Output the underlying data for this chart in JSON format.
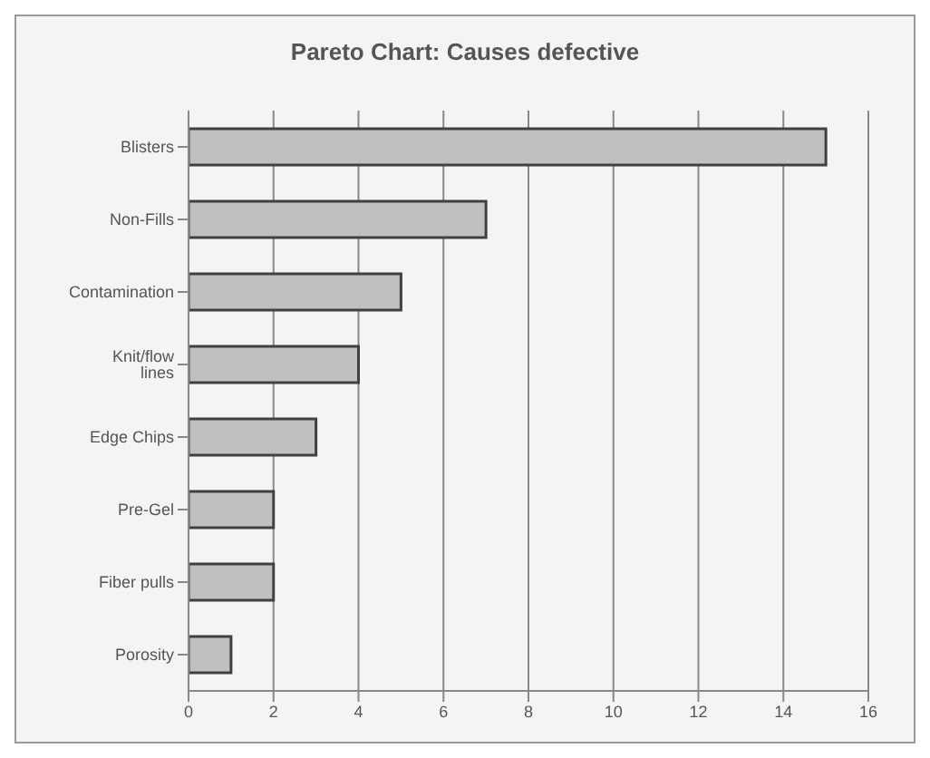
{
  "chart_data": {
    "type": "bar",
    "orientation": "horizontal",
    "title": "Pareto Chart: Causes defective",
    "categories": [
      "Blisters",
      "Non-Fills",
      "Contamination",
      "Knit/flow lines",
      "Edge Chips",
      "Pre-Gel",
      "Fiber pulls",
      "Porosity"
    ],
    "values": [
      15,
      7,
      5,
      4,
      3,
      2,
      2,
      1
    ],
    "color": "#c0c0c0",
    "xlim": [
      0,
      16
    ],
    "xticks": [
      0,
      2,
      4,
      6,
      8,
      10,
      12,
      14,
      16
    ],
    "grid": "x"
  }
}
